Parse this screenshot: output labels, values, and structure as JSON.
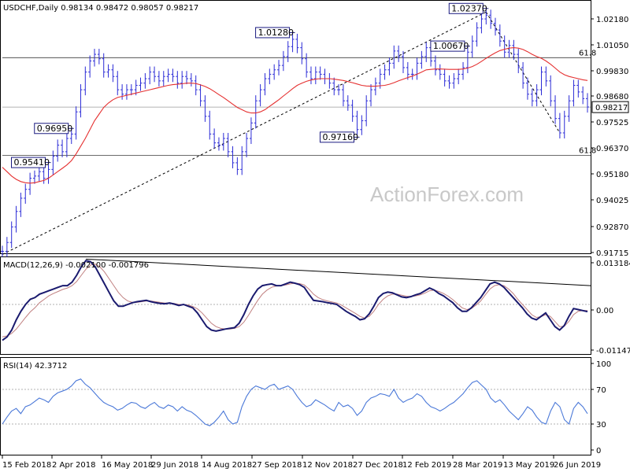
{
  "chart_data": {
    "type": "line",
    "colors": {
      "price": "#2b2bd6",
      "ma": "#e53030",
      "macd": "#1a1a6e",
      "signal": "#c08080",
      "rsi": "#4a78d8",
      "axis_box": "#1a1a80"
    },
    "price_panel": {
      "header": "USDCHF,Daily  0.98134 0.98472 0.98057 0.98217",
      "last_price_label": "0.98217",
      "last_price": 0.98217,
      "ylim": [
        0.9161,
        1.0302
      ],
      "y_ticks": [
        "1.02180",
        "1.01050",
        "0.99830",
        "0.98680",
        "0.97525",
        "0.96370",
        "0.95180",
        "0.94025",
        "0.92870",
        "0.91715"
      ],
      "fib_levels": [
        {
          "label": "61.8",
          "value": 1.0045
        },
        {
          "label": "61.8",
          "value": 0.9603
        }
      ],
      "annotations": [
        {
          "label": "1.00670",
          "value": 1.0067
        },
        {
          "label": "1.01280",
          "value": 1.0128
        },
        {
          "label": "1.02370",
          "value": 1.0237
        },
        {
          "label": "0.95410",
          "value": 0.9541
        },
        {
          "label": "0.97160",
          "value": 0.9716
        },
        {
          "label": "0.96950",
          "value": 0.9695
        }
      ],
      "price_series": [
        0.917,
        0.921,
        0.928,
        0.935,
        0.941,
        0.945,
        0.95,
        0.951,
        0.953,
        0.95,
        0.954,
        0.96,
        0.965,
        0.962,
        0.968,
        0.97,
        0.98,
        0.99,
        0.998,
        1.003,
        1.006,
        1.004,
        0.998,
        0.999,
        0.996,
        0.99,
        0.988,
        0.99,
        0.99,
        0.992,
        0.993,
        0.995,
        0.998,
        0.996,
        0.994,
        0.996,
        0.997,
        0.996,
        0.993,
        0.996,
        0.995,
        0.994,
        0.99,
        0.985,
        0.978,
        0.97,
        0.966,
        0.965,
        0.968,
        0.962,
        0.957,
        0.954,
        0.962,
        0.968,
        0.975,
        0.985,
        0.99,
        0.995,
        0.997,
        0.999,
        1.001,
        1.005,
        1.0095,
        1.0128,
        1.009,
        1.004,
        0.998,
        0.995,
        0.998,
        0.997,
        0.995,
        0.993,
        0.99,
        0.99,
        0.985,
        0.983,
        0.978,
        0.972,
        0.976,
        0.985,
        0.99,
        0.993,
        0.997,
        0.999,
        1.002,
        1.0075,
        1.005,
        1.0,
        0.997,
        0.997,
        1.002,
        1.005,
        1.009,
        1.003,
        0.999,
        0.997,
        0.994,
        0.993,
        0.995,
        0.997,
        1.0,
        1.007,
        1.012,
        1.018,
        1.022,
        1.0237,
        1.02,
        1.017,
        1.012,
        1.007,
        1.01,
        1.006,
        1.0,
        0.993,
        0.988,
        0.985,
        0.99,
        0.998,
        0.994,
        0.985,
        0.977,
        0.9705,
        0.978,
        0.985,
        0.992,
        0.989,
        0.986,
        0.9822
      ],
      "ma_series": [
        0.955,
        0.953,
        0.951,
        0.9495,
        0.9485,
        0.948,
        0.9478,
        0.948,
        0.9485,
        0.949,
        0.95,
        0.9515,
        0.953,
        0.9545,
        0.956,
        0.958,
        0.961,
        0.9645,
        0.968,
        0.972,
        0.976,
        0.979,
        0.982,
        0.984,
        0.9855,
        0.9865,
        0.987,
        0.9875,
        0.988,
        0.9885,
        0.989,
        0.9895,
        0.99,
        0.9905,
        0.991,
        0.9915,
        0.992,
        0.9923,
        0.9925,
        0.9927,
        0.993,
        0.993,
        0.9928,
        0.9922,
        0.9915,
        0.9905,
        0.9892,
        0.9878,
        0.9865,
        0.985,
        0.9835,
        0.982,
        0.981,
        0.98,
        0.9795,
        0.9795,
        0.98,
        0.981,
        0.9825,
        0.984,
        0.9855,
        0.9872,
        0.9888,
        0.9905,
        0.992,
        0.993,
        0.9938,
        0.9944,
        0.9948,
        0.995,
        0.995,
        0.995,
        0.9948,
        0.9945,
        0.9942,
        0.9937,
        0.9932,
        0.9926,
        0.992,
        0.9917,
        0.9916,
        0.9916,
        0.9918,
        0.992,
        0.9925,
        0.9932,
        0.994,
        0.9948,
        0.9955,
        0.9962,
        0.997,
        0.998,
        0.999,
        0.9992,
        0.9994,
        0.9994,
        0.9993,
        0.9992,
        0.9992,
        0.9992,
        0.9994,
        0.9998,
        1.0005,
        1.0015,
        1.0028,
        1.0042,
        1.0055,
        1.0067,
        1.0077,
        1.0083,
        1.0088,
        1.009,
        1.0088,
        1.0082,
        1.0072,
        1.006,
        1.005,
        1.0042,
        1.003,
        1.0015,
        0.9998,
        0.998,
        0.9968,
        0.996,
        0.9955,
        0.995,
        0.9945,
        0.9942
      ]
    },
    "macd_panel": {
      "header": "MACD(12,26,9) -0.002100 -0.001796",
      "ylim": [
        -0.0145,
        0.0138
      ],
      "y_ticks": [
        "0.013184",
        "0.00",
        "-0.011479"
      ],
      "macd_series": [
        -0.0105,
        -0.0095,
        -0.0075,
        -0.0045,
        -0.002,
        0.0,
        0.0015,
        0.002,
        0.003,
        0.0035,
        0.004,
        0.0045,
        0.005,
        0.0055,
        0.0055,
        0.0065,
        0.0085,
        0.011,
        0.0128,
        0.0125,
        0.011,
        0.0085,
        0.006,
        0.0035,
        0.001,
        -0.0005,
        -0.0005,
        0.0,
        0.0005,
        0.0008,
        0.001,
        0.0012,
        0.0008,
        0.0005,
        0.0003,
        0.0002,
        0.0004,
        0.0001,
        -0.0003,
        0.0,
        -0.0005,
        -0.001,
        -0.0025,
        -0.0045,
        -0.0065,
        -0.0075,
        -0.0078,
        -0.0075,
        -0.0072,
        -0.007,
        -0.0068,
        -0.0055,
        -0.003,
        0.0,
        0.0025,
        0.0045,
        0.0055,
        0.0058,
        0.006,
        0.0055,
        0.0055,
        0.006,
        0.0065,
        0.0062,
        0.0058,
        0.005,
        0.003,
        0.0012,
        0.001,
        0.0008,
        0.0005,
        0.0003,
        0.0,
        -0.001,
        -0.002,
        -0.0028,
        -0.0035,
        -0.0045,
        -0.0042,
        -0.0028,
        -0.0005,
        0.002,
        0.0032,
        0.0036,
        0.0034,
        0.0028,
        0.0022,
        0.002,
        0.0023,
        0.0028,
        0.0032,
        0.004,
        0.0048,
        0.0042,
        0.0032,
        0.0025,
        0.0015,
        0.0005,
        -0.001,
        -0.002,
        -0.002,
        -0.001,
        0.0005,
        0.002,
        0.004,
        0.006,
        0.0065,
        0.006,
        0.005,
        0.0035,
        0.002,
        0.0005,
        -0.001,
        -0.0028,
        -0.004,
        -0.0045,
        -0.0035,
        -0.0025,
        -0.0045,
        -0.0065,
        -0.0075,
        -0.0062,
        -0.0035,
        -0.0012,
        -0.0015,
        -0.0018,
        -0.0021
      ],
      "signal_series": [
        -0.0095,
        -0.0092,
        -0.0085,
        -0.0072,
        -0.0055,
        -0.0038,
        -0.0022,
        -0.001,
        0.0005,
        0.0015,
        0.0025,
        0.0032,
        0.0038,
        0.0044,
        0.0048,
        0.0055,
        0.0067,
        0.0085,
        0.0103,
        0.0115,
        0.0118,
        0.011,
        0.0095,
        0.0075,
        0.0055,
        0.0035,
        0.002,
        0.001,
        0.0006,
        0.0006,
        0.0008,
        0.001,
        0.001,
        0.0008,
        0.0006,
        0.0004,
        0.0004,
        0.0003,
        0.0,
        0.0,
        -0.0002,
        -0.0006,
        -0.0013,
        -0.0025,
        -0.004,
        -0.0055,
        -0.0065,
        -0.007,
        -0.0072,
        -0.0072,
        -0.007,
        -0.0065,
        -0.0052,
        -0.0032,
        -0.001,
        0.0012,
        0.003,
        0.0042,
        0.005,
        0.0054,
        0.0055,
        0.0057,
        0.006,
        0.0062,
        0.0061,
        0.0057,
        0.0045,
        0.003,
        0.002,
        0.0014,
        0.001,
        0.0007,
        0.0004,
        -0.0002,
        -0.001,
        -0.0018,
        -0.0026,
        -0.0035,
        -0.004,
        -0.0035,
        -0.002,
        0.0,
        0.0015,
        0.0025,
        0.003,
        0.003,
        0.0027,
        0.0024,
        0.0023,
        0.0025,
        0.0028,
        0.0033,
        0.004,
        0.0042,
        0.0038,
        0.0032,
        0.0024,
        0.0014,
        0.0002,
        -0.001,
        -0.0015,
        -0.0012,
        -0.0002,
        0.001,
        0.0028,
        0.0045,
        0.0055,
        0.0058,
        0.0055,
        0.0045,
        0.0032,
        0.0015,
        0.0,
        -0.0015,
        -0.003,
        -0.0038,
        -0.0036,
        -0.003,
        -0.0035,
        -0.005,
        -0.0065,
        -0.0064,
        -0.005,
        -0.003,
        -0.002,
        -0.0018,
        -0.0018
      ]
    },
    "rsi_panel": {
      "header": "RSI(14) 42.3712",
      "ylim": [
        0,
        100
      ],
      "y_ticks": [
        "100",
        "70",
        "30",
        "0"
      ],
      "levels": [
        70,
        30
      ],
      "rsi_series": [
        30,
        38,
        45,
        48,
        42,
        50,
        52,
        56,
        60,
        58,
        55,
        62,
        66,
        68,
        70,
        74,
        80,
        82,
        76,
        72,
        66,
        60,
        55,
        52,
        50,
        46,
        48,
        52,
        55,
        54,
        50,
        48,
        52,
        55,
        50,
        48,
        52,
        50,
        45,
        50,
        46,
        44,
        40,
        35,
        30,
        28,
        32,
        38,
        45,
        35,
        30,
        32,
        50,
        62,
        70,
        74,
        72,
        70,
        74,
        76,
        70,
        72,
        74,
        70,
        62,
        55,
        50,
        52,
        58,
        55,
        52,
        48,
        45,
        55,
        50,
        52,
        48,
        40,
        45,
        55,
        60,
        62,
        65,
        64,
        62,
        70,
        60,
        55,
        58,
        60,
        65,
        62,
        55,
        50,
        48,
        45,
        48,
        52,
        55,
        60,
        65,
        72,
        78,
        80,
        75,
        70,
        60,
        55,
        58,
        52,
        45,
        40,
        35,
        42,
        50,
        46,
        38,
        32,
        30,
        45,
        55,
        50,
        35,
        30,
        48,
        55,
        50,
        42
      ]
    },
    "x_ticks": [
      "15 Feb 2018",
      "2 Apr 2018",
      "16 May 2018",
      "29 Jun 2018",
      "14 Aug 2018",
      "27 Sep 2018",
      "12 Nov 2018",
      "27 Dec 2018",
      "12 Feb 2019",
      "28 Mar 2019",
      "13 May 2019",
      "26 Jun 2019"
    ]
  },
  "watermark": "ActionForex.com"
}
